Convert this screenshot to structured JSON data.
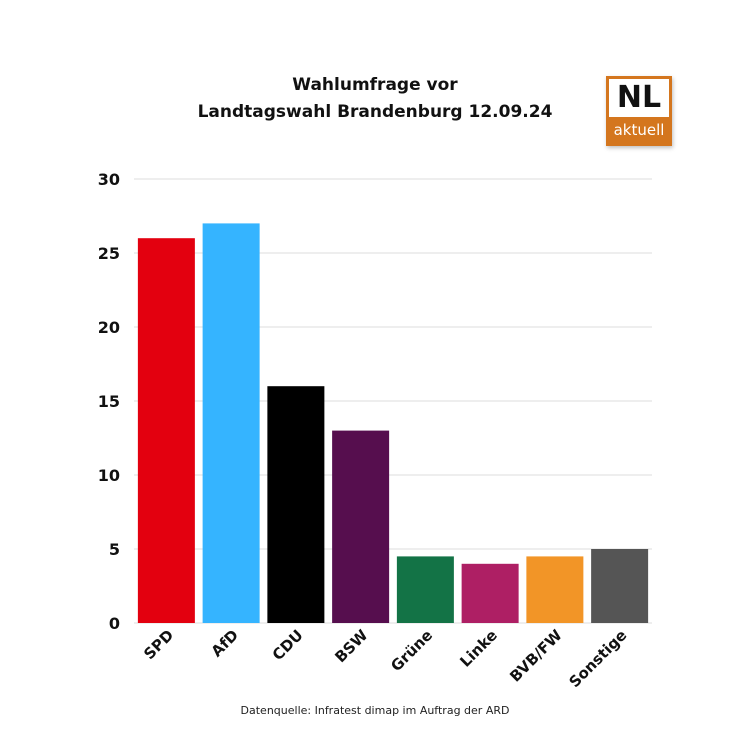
{
  "title_lines": [
    "Wahlumfrage vor",
    "Landtagswahl Brandenburg 12.09.24"
  ],
  "logo": {
    "top": "NL",
    "bottom": "aktuell",
    "color": "#d4761e"
  },
  "source": "Datenquelle: Infratest dimap im Auftrag der ARD",
  "chart_data": {
    "type": "bar",
    "title": "Wahlumfrage vor Landtagswahl Brandenburg 12.09.24",
    "xlabel": "",
    "ylabel": "",
    "ylim": [
      0,
      30
    ],
    "yticks": [
      0,
      5,
      10,
      15,
      20,
      25,
      30
    ],
    "grid": true,
    "legend": "none",
    "categories": [
      "SPD",
      "AfD",
      "CDU",
      "BSW",
      "Grüne",
      "Linke",
      "BVB/FW",
      "Sonstige"
    ],
    "values": [
      26,
      27,
      16,
      13,
      4.5,
      4,
      4.5,
      5
    ],
    "colors": [
      "#e3000f",
      "#35b4ff",
      "#000000",
      "#560e4e",
      "#137346",
      "#ae1f64",
      "#f29527",
      "#555555"
    ]
  }
}
